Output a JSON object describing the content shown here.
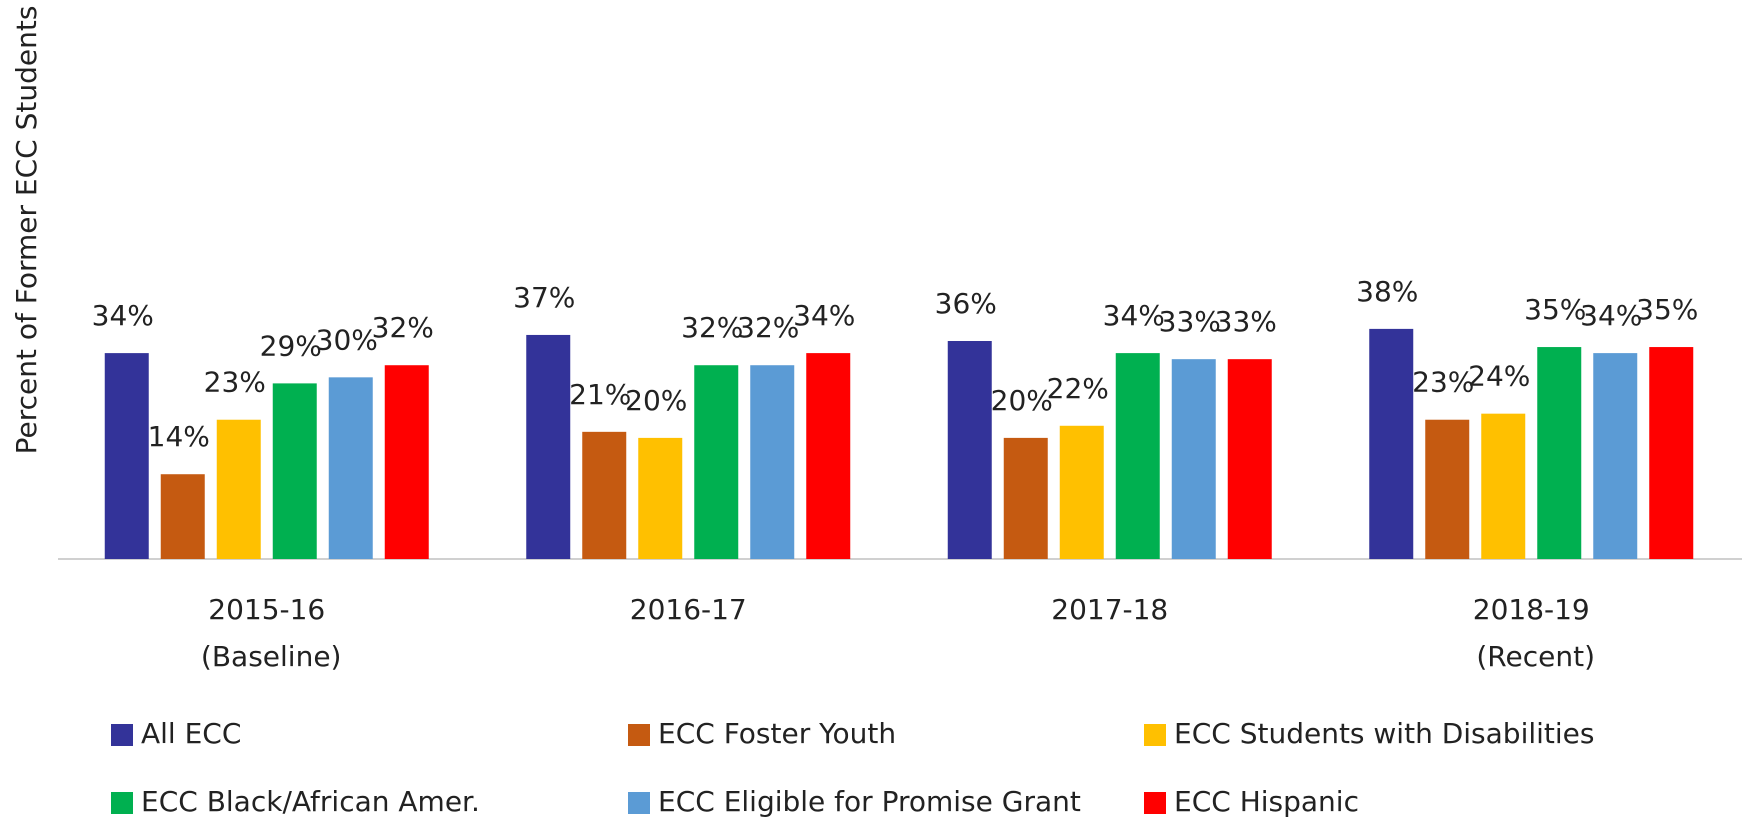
{
  "chart_data": {
    "type": "bar",
    "y_label": "Percent of Former ECC Students",
    "categories": [
      "2015-16\n(Baseline)",
      "2016-17",
      "2017-18",
      "2018-19\n(Recent)"
    ],
    "series": [
      {
        "name": "All ECC",
        "color": "#333399",
        "values": [
          34,
          37,
          36,
          38
        ],
        "value_labels": [
          "34%",
          "37%",
          "36%",
          "38%"
        ]
      },
      {
        "name": "ECC Foster Youth",
        "color": "#c55a11",
        "values": [
          14,
          21,
          20,
          23
        ],
        "value_labels": [
          "14%",
          "21%",
          "20%",
          "23%"
        ]
      },
      {
        "name": "ECC Students with Disabilities",
        "color": "#ffc000",
        "values": [
          23,
          20,
          22,
          24
        ],
        "value_labels": [
          "23%",
          "20%",
          "22%",
          "24%"
        ]
      },
      {
        "name": "ECC Black/African Amer.",
        "color": "#00b050",
        "values": [
          29,
          32,
          34,
          35
        ],
        "value_labels": [
          "29%",
          "32%",
          "34%",
          "35%"
        ]
      },
      {
        "name": "ECC Eligible for Promise Grant",
        "color": "#5b9bd5",
        "values": [
          30,
          32,
          33,
          34
        ],
        "value_labels": [
          "30%",
          "32%",
          "33%",
          "34%"
        ]
      },
      {
        "name": "ECC Hispanic",
        "color": "#ff0000",
        "values": [
          32,
          34,
          33,
          35
        ],
        "value_labels": [
          "32%",
          "34%",
          "33%",
          "35%"
        ]
      }
    ],
    "ylim": [
      0,
      90
    ]
  }
}
